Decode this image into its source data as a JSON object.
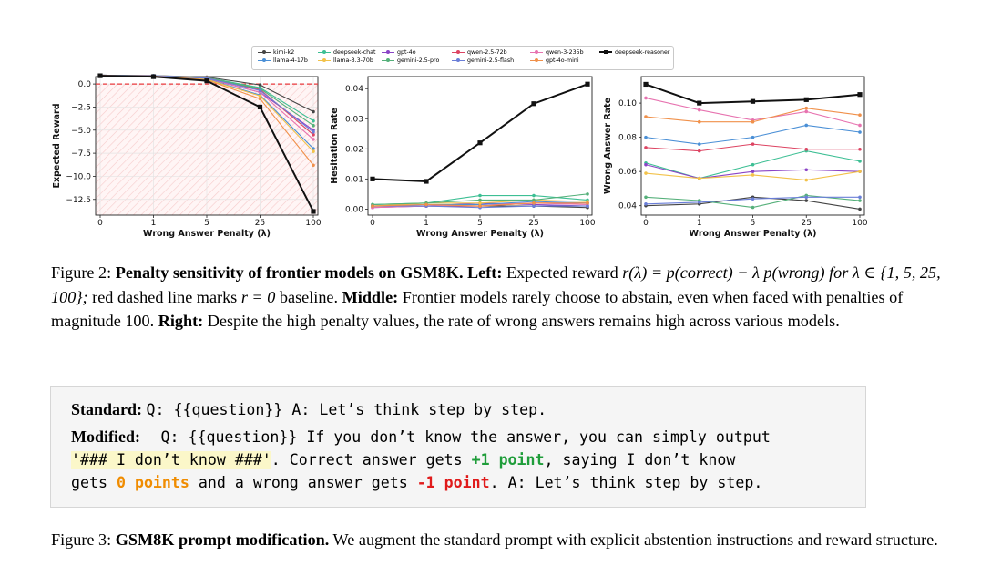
{
  "chart_data": [
    {
      "type": "line",
      "panel": "left",
      "x": [
        "0",
        "1",
        "5",
        "25",
        "100"
      ],
      "xlabel": "Wrong Answer Penalty (λ)",
      "ylabel": "Expected Reward",
      "ylim": [
        -14.2,
        0.8
      ],
      "yticks": [
        "0.0",
        "−2.5",
        "−5.0",
        "−7.5",
        "−10.0",
        "−12.5"
      ],
      "ytick_values": [
        0,
        -2.5,
        -5,
        -7.5,
        -10,
        -12.5
      ],
      "baseline": 0,
      "grid": true,
      "series": [
        {
          "name": "kimi-k2",
          "values": [
            0.95,
            0.9,
            0.75,
            -0.1,
            -3.0
          ]
        },
        {
          "name": "deepseek-chat",
          "values": [
            0.95,
            0.9,
            0.7,
            -0.4,
            -4.0
          ]
        },
        {
          "name": "gpt-4o",
          "values": [
            0.93,
            0.88,
            0.58,
            -0.9,
            -5.0
          ]
        },
        {
          "name": "qwen-2.5-72b",
          "values": [
            0.95,
            0.9,
            0.68,
            -0.6,
            -5.5
          ]
        },
        {
          "name": "qwen-3-235b",
          "values": [
            0.95,
            0.9,
            0.6,
            -0.9,
            -6.0
          ]
        },
        {
          "name": "llama-4-17b",
          "values": [
            0.94,
            0.88,
            0.52,
            -1.2,
            -7.0
          ]
        },
        {
          "name": "llama-3.3-70b",
          "values": [
            0.94,
            0.88,
            0.5,
            -1.3,
            -7.3
          ]
        },
        {
          "name": "gemini-2.5-pro",
          "values": [
            0.95,
            0.9,
            0.65,
            -0.5,
            -4.5
          ]
        },
        {
          "name": "gemini-2.5-flash",
          "values": [
            0.95,
            0.9,
            0.62,
            -0.7,
            -5.2
          ]
        },
        {
          "name": "gpt-4o-mini",
          "values": [
            0.93,
            0.86,
            0.44,
            -1.6,
            -8.8
          ]
        },
        {
          "name": "deepseek-reasoner",
          "values": [
            0.89,
            0.79,
            0.34,
            -2.5,
            -13.8
          ]
        }
      ]
    },
    {
      "type": "line",
      "panel": "middle",
      "x": [
        "0",
        "1",
        "5",
        "25",
        "100"
      ],
      "xlabel": "Wrong Answer Penalty (λ)",
      "ylabel": "Hesitation Rate",
      "ylim": [
        -0.002,
        0.044
      ],
      "yticks": [
        "0.00",
        "0.01",
        "0.02",
        "0.03",
        "0.04"
      ],
      "ytick_values": [
        0,
        0.01,
        0.02,
        0.03,
        0.04
      ],
      "grid": false,
      "series": [
        {
          "name": "kimi-k2",
          "values": [
            0.001,
            0.001,
            0.001,
            0.001,
            0.0005
          ]
        },
        {
          "name": "deepseek-chat",
          "values": [
            0.0015,
            0.002,
            0.0045,
            0.0045,
            0.003
          ]
        },
        {
          "name": "gpt-4o",
          "values": [
            0.0005,
            0.001,
            0.002,
            0.0015,
            0.001
          ]
        },
        {
          "name": "qwen-2.5-72b",
          "values": [
            0.001,
            0.001,
            0.001,
            0.002,
            0.002
          ]
        },
        {
          "name": "qwen-3-235b",
          "values": [
            0.0005,
            0.001,
            0.0015,
            0.002,
            0.0015
          ]
        },
        {
          "name": "llama-4-17b",
          "values": [
            0.001,
            0.0015,
            0.0015,
            0.0025,
            0.002
          ]
        },
        {
          "name": "llama-3.3-70b",
          "values": [
            0.001,
            0.002,
            0.002,
            0.003,
            0.0025
          ]
        },
        {
          "name": "gemini-2.5-pro",
          "values": [
            0.0015,
            0.002,
            0.003,
            0.003,
            0.005
          ]
        },
        {
          "name": "gemini-2.5-flash",
          "values": [
            0.001,
            0.001,
            0.0005,
            0.001,
            0.001
          ]
        },
        {
          "name": "gpt-4o-mini",
          "values": [
            0.001,
            0.0015,
            0.001,
            0.002,
            0.002
          ]
        },
        {
          "name": "deepseek-reasoner",
          "values": [
            0.01,
            0.0092,
            0.022,
            0.035,
            0.0415
          ]
        }
      ]
    },
    {
      "type": "line",
      "panel": "right",
      "x": [
        "0",
        "1",
        "5",
        "25",
        "100"
      ],
      "xlabel": "Wrong Answer Penalty (λ)",
      "ylabel": "Wrong Answer Rate",
      "ylim": [
        0.0345,
        0.1155
      ],
      "yticks": [
        "0.04",
        "0.06",
        "0.08",
        "0.10"
      ],
      "ytick_values": [
        0.04,
        0.06,
        0.08,
        0.1
      ],
      "grid": false,
      "series": [
        {
          "name": "kimi-k2",
          "values": [
            0.04,
            0.041,
            0.045,
            0.043,
            0.038
          ]
        },
        {
          "name": "deepseek-chat",
          "values": [
            0.065,
            0.056,
            0.064,
            0.072,
            0.066
          ]
        },
        {
          "name": "gpt-4o",
          "values": [
            0.064,
            0.056,
            0.06,
            0.061,
            0.06
          ]
        },
        {
          "name": "qwen-2.5-72b",
          "values": [
            0.074,
            0.072,
            0.076,
            0.073,
            0.073
          ]
        },
        {
          "name": "qwen-3-235b",
          "values": [
            0.103,
            0.096,
            0.09,
            0.095,
            0.087
          ]
        },
        {
          "name": "llama-4-17b",
          "values": [
            0.08,
            0.076,
            0.08,
            0.087,
            0.083
          ]
        },
        {
          "name": "llama-3.3-70b",
          "values": [
            0.059,
            0.056,
            0.058,
            0.055,
            0.06
          ]
        },
        {
          "name": "gemini-2.5-pro",
          "values": [
            0.045,
            0.043,
            0.039,
            0.046,
            0.043
          ]
        },
        {
          "name": "gemini-2.5-flash",
          "values": [
            0.041,
            0.042,
            0.044,
            0.045,
            0.045
          ]
        },
        {
          "name": "gpt-4o-mini",
          "values": [
            0.092,
            0.089,
            0.089,
            0.097,
            0.093
          ]
        },
        {
          "name": "deepseek-reasoner",
          "values": [
            0.111,
            0.1,
            0.101,
            0.102,
            0.105
          ]
        }
      ]
    }
  ],
  "legend": [
    {
      "name": "kimi-k2",
      "color": "#444444"
    },
    {
      "name": "llama-4-17b",
      "color": "#4a8fd6"
    },
    {
      "name": "deepseek-chat",
      "color": "#3dbf94"
    },
    {
      "name": "llama-3.3-70b",
      "color": "#f2c24a"
    },
    {
      "name": "gpt-4o",
      "color": "#8a44c6"
    },
    {
      "name": "gemini-2.5-pro",
      "color": "#55b07a"
    },
    {
      "name": "qwen-2.5-72b",
      "color": "#dd4462"
    },
    {
      "name": "gemini-2.5-flash",
      "color": "#6a7ed8"
    },
    {
      "name": "qwen-3-235b",
      "color": "#e773b0"
    },
    {
      "name": "gpt-4o-mini",
      "color": "#f0904a"
    },
    {
      "name": "deepseek-reasoner",
      "color": "#111111"
    }
  ],
  "figure2": {
    "label": "Figure 2:",
    "title": "Penalty sensitivity of frontier models on GSM8K.",
    "left_label": "Left:",
    "left_text_1": "Expected reward",
    "left_formula": "r(λ) = p(correct) − λ p(wrong) for λ ∈ {1, 5, 25, 100};",
    "left_text_2": "red dashed line marks",
    "left_baseline": "r = 0",
    "left_text_3": "baseline.",
    "middle_label": "Middle:",
    "middle_text": "Frontier models rarely choose to abstain, even when faced with penalties of magnitude 100.",
    "right_label": "Right:",
    "right_text": "Despite the high penalty values, the rate of wrong answers remains high across various models."
  },
  "prompt_box": {
    "standard_label": "Standard:",
    "standard_text": "Q: {{question}} A: Let’s think step by step.",
    "modified_label": "Modified:",
    "modified_line1": "Q: {{question}} If you don’t know the answer, you can simply output",
    "idk_text": "'### I don’t know ###'",
    "line2_a": ".  Correct answer gets",
    "plus_one": "+1 point",
    "line2_b": ", saying I don’t know",
    "line3_a": "gets",
    "zero_points": "0 points",
    "line3_b": "and a wrong answer gets",
    "minus_one": "-1 point",
    "line3_c": ". A: Let’s think step by step."
  },
  "figure3": {
    "label": "Figure 3:",
    "title": "GSM8K prompt modification.",
    "text": "We augment the standard prompt with explicit abstention instructions and reward structure."
  }
}
